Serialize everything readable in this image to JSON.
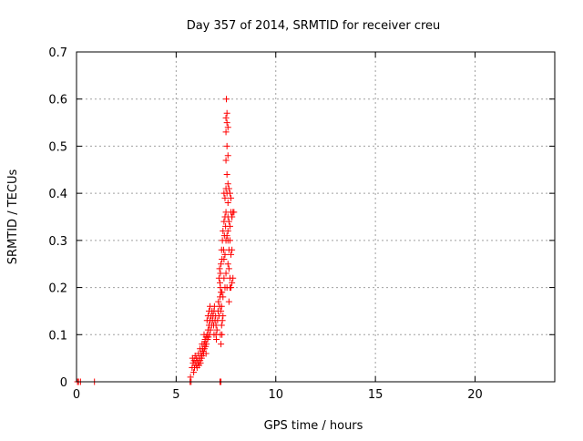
{
  "chart_data": {
    "type": "scatter",
    "title": "Day 357 of 2014, SRMTID for receiver creu",
    "xlabel": "GPS time / hours",
    "ylabel": "SRMTID / TECUs",
    "xlim": [
      0,
      24
    ],
    "ylim": [
      0,
      0.7
    ],
    "xticks": [
      0,
      5,
      10,
      15,
      20
    ],
    "yticks": [
      0,
      0.1,
      0.2,
      0.3,
      0.4,
      0.5,
      0.6,
      0.7
    ],
    "grid": true,
    "marker": "plus",
    "color": "#ff0000",
    "series": [
      {
        "points": [
          [
            0.05,
            0.0
          ],
          [
            0.1,
            0.0
          ],
          [
            0.2,
            0.0
          ],
          [
            0.9,
            0.0
          ],
          [
            5.7,
            0.0
          ],
          [
            5.72,
            0.01
          ],
          [
            5.75,
            0.0
          ],
          [
            7.2,
            0.0
          ],
          [
            7.25,
            0.0
          ],
          [
            5.8,
            0.03
          ],
          [
            5.82,
            0.05
          ],
          [
            5.85,
            0.04
          ],
          [
            5.88,
            0.02
          ],
          [
            5.9,
            0.045
          ],
          [
            5.92,
            0.03
          ],
          [
            5.95,
            0.055
          ],
          [
            5.98,
            0.04
          ],
          [
            6.0,
            0.035
          ],
          [
            6.02,
            0.05
          ],
          [
            6.05,
            0.03
          ],
          [
            6.08,
            0.045
          ],
          [
            6.1,
            0.04
          ],
          [
            6.12,
            0.06
          ],
          [
            6.15,
            0.035
          ],
          [
            6.18,
            0.05
          ],
          [
            6.2,
            0.045
          ],
          [
            6.22,
            0.04
          ],
          [
            6.25,
            0.06
          ],
          [
            6.28,
            0.05
          ],
          [
            6.3,
            0.055
          ],
          [
            6.32,
            0.07
          ],
          [
            6.35,
            0.065
          ],
          [
            6.38,
            0.06
          ],
          [
            6.4,
            0.08
          ],
          [
            6.42,
            0.07
          ],
          [
            6.45,
            0.085
          ],
          [
            6.48,
            0.075
          ],
          [
            6.5,
            0.095
          ],
          [
            6.52,
            0.08
          ],
          [
            6.55,
            0.1
          ],
          [
            6.58,
            0.09
          ],
          [
            6.6,
            0.11
          ],
          [
            6.62,
            0.095
          ],
          [
            6.65,
            0.12
          ],
          [
            6.68,
            0.1
          ],
          [
            6.7,
            0.13
          ],
          [
            6.72,
            0.11
          ],
          [
            6.75,
            0.14
          ],
          [
            6.78,
            0.12
          ],
          [
            6.8,
            0.15
          ],
          [
            6.82,
            0.13
          ],
          [
            6.85,
            0.14
          ],
          [
            6.88,
            0.12
          ],
          [
            6.9,
            0.15
          ],
          [
            6.92,
            0.16
          ],
          [
            6.95,
            0.13
          ],
          [
            6.98,
            0.14
          ],
          [
            7.0,
            0.12
          ],
          [
            6.55,
            0.13
          ],
          [
            6.6,
            0.14
          ],
          [
            6.65,
            0.15
          ],
          [
            6.7,
            0.16
          ],
          [
            6.5,
            0.06
          ],
          [
            6.45,
            0.09
          ],
          [
            6.4,
            0.1
          ],
          [
            6.3,
            0.08
          ],
          [
            6.2,
            0.07
          ],
          [
            6.9,
            0.1
          ],
          [
            7.0,
            0.1
          ],
          [
            7.02,
            0.09
          ],
          [
            7.05,
            0.11
          ],
          [
            7.08,
            0.13
          ],
          [
            7.1,
            0.15
          ],
          [
            7.12,
            0.17
          ],
          [
            7.15,
            0.14
          ],
          [
            7.18,
            0.16
          ],
          [
            7.2,
            0.18
          ],
          [
            7.22,
            0.2
          ],
          [
            7.25,
            0.19
          ],
          [
            7.15,
            0.22
          ],
          [
            7.18,
            0.24
          ],
          [
            7.2,
            0.21
          ],
          [
            7.22,
            0.23
          ],
          [
            7.25,
            0.25
          ],
          [
            7.28,
            0.28
          ],
          [
            7.3,
            0.26
          ],
          [
            7.32,
            0.3
          ],
          [
            7.35,
            0.32
          ],
          [
            7.38,
            0.28
          ],
          [
            7.4,
            0.34
          ],
          [
            7.42,
            0.31
          ],
          [
            7.45,
            0.35
          ],
          [
            7.48,
            0.33
          ],
          [
            7.5,
            0.36
          ],
          [
            7.4,
            0.4
          ],
          [
            7.45,
            0.39
          ],
          [
            7.5,
            0.41
          ],
          [
            7.55,
            0.4
          ],
          [
            7.6,
            0.42
          ],
          [
            7.55,
            0.44
          ],
          [
            7.5,
            0.47
          ],
          [
            7.55,
            0.5
          ],
          [
            7.6,
            0.48
          ],
          [
            7.5,
            0.53
          ],
          [
            7.55,
            0.55
          ],
          [
            7.6,
            0.54
          ],
          [
            7.5,
            0.56
          ],
          [
            7.55,
            0.57
          ],
          [
            7.52,
            0.6
          ],
          [
            7.6,
            0.35
          ],
          [
            7.65,
            0.34
          ],
          [
            7.7,
            0.33
          ],
          [
            7.75,
            0.36
          ],
          [
            7.8,
            0.35
          ],
          [
            7.85,
            0.36
          ],
          [
            7.6,
            0.38
          ],
          [
            7.65,
            0.41
          ],
          [
            7.7,
            0.4
          ],
          [
            7.75,
            0.39
          ],
          [
            7.6,
            0.3
          ],
          [
            7.65,
            0.28
          ],
          [
            7.7,
            0.3
          ],
          [
            7.75,
            0.27
          ],
          [
            7.8,
            0.28
          ],
          [
            7.6,
            0.25
          ],
          [
            7.65,
            0.24
          ],
          [
            7.7,
            0.22
          ],
          [
            7.75,
            0.2
          ],
          [
            7.8,
            0.21
          ],
          [
            7.85,
            0.22
          ],
          [
            7.55,
            0.2
          ],
          [
            7.5,
            0.23
          ],
          [
            7.45,
            0.2
          ],
          [
            7.4,
            0.22
          ],
          [
            7.35,
            0.18
          ],
          [
            7.3,
            0.19
          ],
          [
            7.28,
            0.16
          ],
          [
            7.25,
            0.15
          ],
          [
            7.4,
            0.26
          ],
          [
            7.45,
            0.27
          ],
          [
            7.5,
            0.3
          ],
          [
            7.55,
            0.31
          ],
          [
            7.6,
            0.32
          ],
          [
            7.3,
            0.1
          ],
          [
            7.28,
            0.12
          ],
          [
            7.32,
            0.13
          ],
          [
            7.35,
            0.14
          ],
          [
            7.22,
            0.1
          ],
          [
            7.25,
            0.08
          ],
          [
            7.8,
            0.35
          ],
          [
            7.9,
            0.36
          ],
          [
            7.7,
            0.2
          ],
          [
            7.65,
            0.17
          ]
        ]
      }
    ]
  }
}
